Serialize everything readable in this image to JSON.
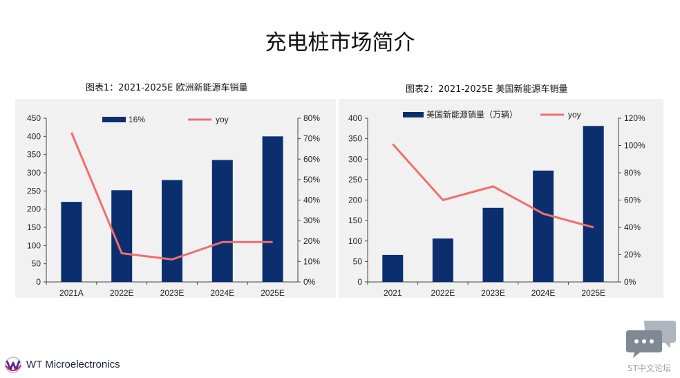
{
  "page": {
    "title": "充电桩市场简介"
  },
  "chart_data": [
    {
      "type": "bar",
      "caption": "图表1：2021-2025E 欧洲新能源车销量",
      "categories": [
        "2021A",
        "2022E",
        "2023E",
        "2024E",
        "2025E"
      ],
      "series": [
        {
          "name": "16%",
          "kind": "bar",
          "axis": "left",
          "values": [
            220,
            252,
            280,
            335,
            400
          ]
        },
        {
          "name": "yoy",
          "kind": "line",
          "axis": "right",
          "values": [
            73,
            14,
            11,
            19.5,
            19.5
          ]
        }
      ],
      "y_ticks": [
        "0",
        "50",
        "100",
        "150",
        "200",
        "250",
        "300",
        "350",
        "400",
        "450"
      ],
      "ylim": [
        0,
        450
      ],
      "y2_ticks": [
        "0%",
        "10%",
        "20%",
        "30%",
        "40%",
        "50%",
        "60%",
        "70%",
        "80%"
      ],
      "y2lim": [
        0,
        80
      ],
      "legend_position": "top",
      "grid": false,
      "colors": {
        "bar": "#0b2f6e",
        "line": "#f26d6d",
        "background": "#f1f1f1"
      }
    },
    {
      "type": "bar",
      "caption": "图表2：2021-2025E 美国新能源车销量",
      "categories": [
        "2021",
        "2022E",
        "2023E",
        "2024E",
        "2025E"
      ],
      "series": [
        {
          "name": "美国新能源销量（万辆）",
          "kind": "bar",
          "axis": "left",
          "values": [
            66,
            106,
            181,
            272,
            381
          ]
        },
        {
          "name": "yoy",
          "kind": "line",
          "axis": "right",
          "values": [
            101,
            60,
            70,
            50,
            40
          ]
        }
      ],
      "y_ticks": [
        "0",
        "50",
        "100",
        "150",
        "200",
        "250",
        "300",
        "350",
        "400"
      ],
      "ylim": [
        0,
        400
      ],
      "y2_ticks": [
        "0%",
        "20%",
        "40%",
        "60%",
        "80%",
        "100%",
        "120%"
      ],
      "y2lim": [
        0,
        120
      ],
      "legend_position": "top",
      "grid": false,
      "colors": {
        "bar": "#0b2f6e",
        "line": "#f26d6d",
        "background": "#f1f1f1"
      }
    }
  ],
  "logo": {
    "text": "WT Microelectronics",
    "icon": "wt-logo-icon"
  },
  "watermark": {
    "text": "ST中文论坛",
    "icon": "chat-bubbles-icon"
  }
}
